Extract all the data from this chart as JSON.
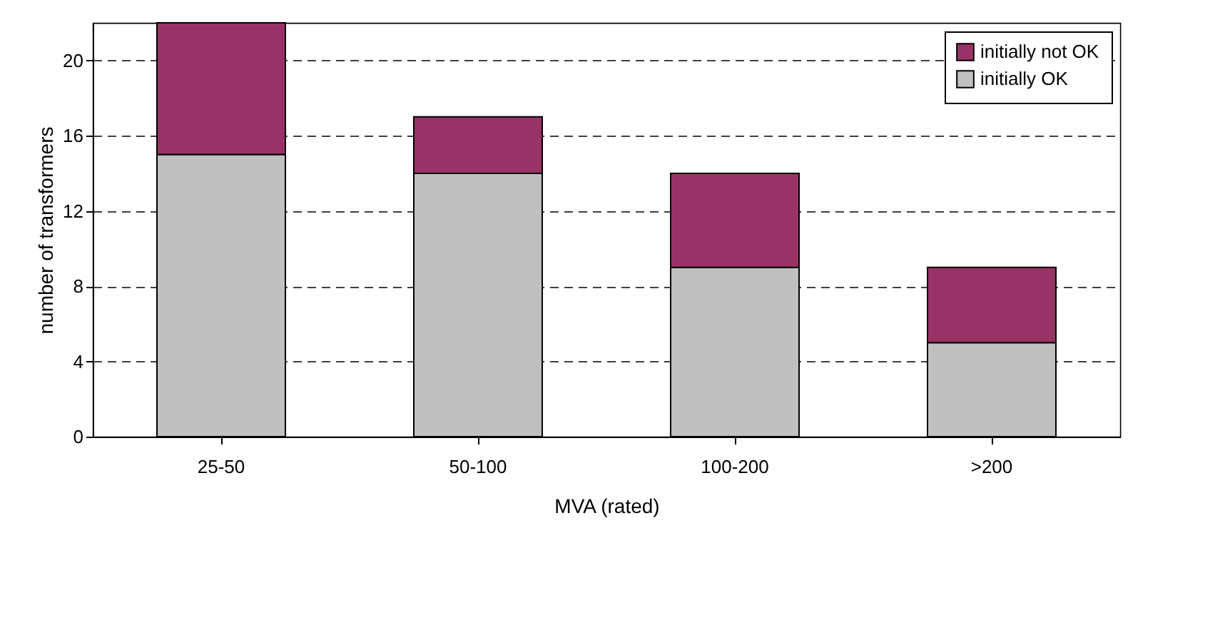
{
  "chart_data": {
    "type": "bar",
    "stacked": true,
    "xlabel": "MVA (rated)",
    "ylabel": "number of transformers",
    "categories": [
      "25-50",
      "50-100",
      "100-200",
      ">200"
    ],
    "series": [
      {
        "name": "initially OK",
        "color": "#c0c0c0",
        "values": [
          15,
          14,
          9,
          5
        ]
      },
      {
        "name": "initially not OK",
        "color": "#993366",
        "values": [
          7,
          3,
          5,
          4
        ]
      }
    ],
    "ylim": [
      0,
      22
    ],
    "yticks": [
      0,
      4,
      8,
      12,
      16,
      20
    ],
    "grid": "y",
    "legend": "top right"
  }
}
